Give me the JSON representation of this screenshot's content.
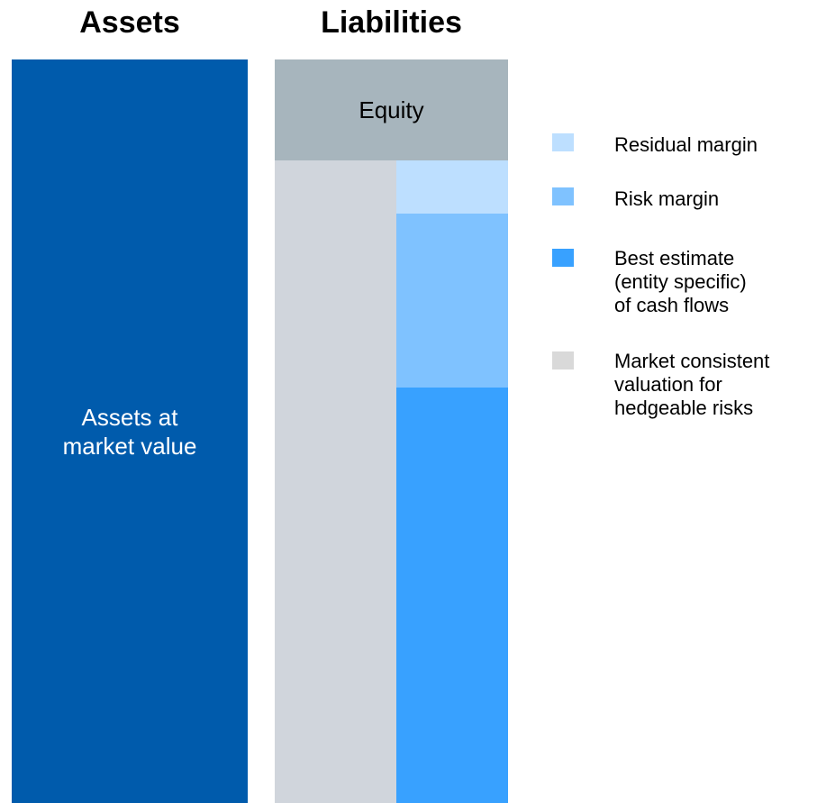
{
  "header": {
    "assets_title": "Assets",
    "liabilities_title": "Liabilities"
  },
  "blocks": {
    "assets": {
      "lines": [
        "Assets at",
        "market value"
      ]
    },
    "equity": {
      "lines": [
        "Equity"
      ]
    }
  },
  "legend": [
    {
      "lines": [
        "Residual margin"
      ]
    },
    {
      "lines": [
        "Risk margin"
      ]
    },
    {
      "lines": [
        "Best estimate",
        "(entity specific)",
        "of cash flows"
      ]
    },
    {
      "lines": [
        "Market consistent",
        "valuation for",
        "hedgeable risks"
      ]
    }
  ]
}
